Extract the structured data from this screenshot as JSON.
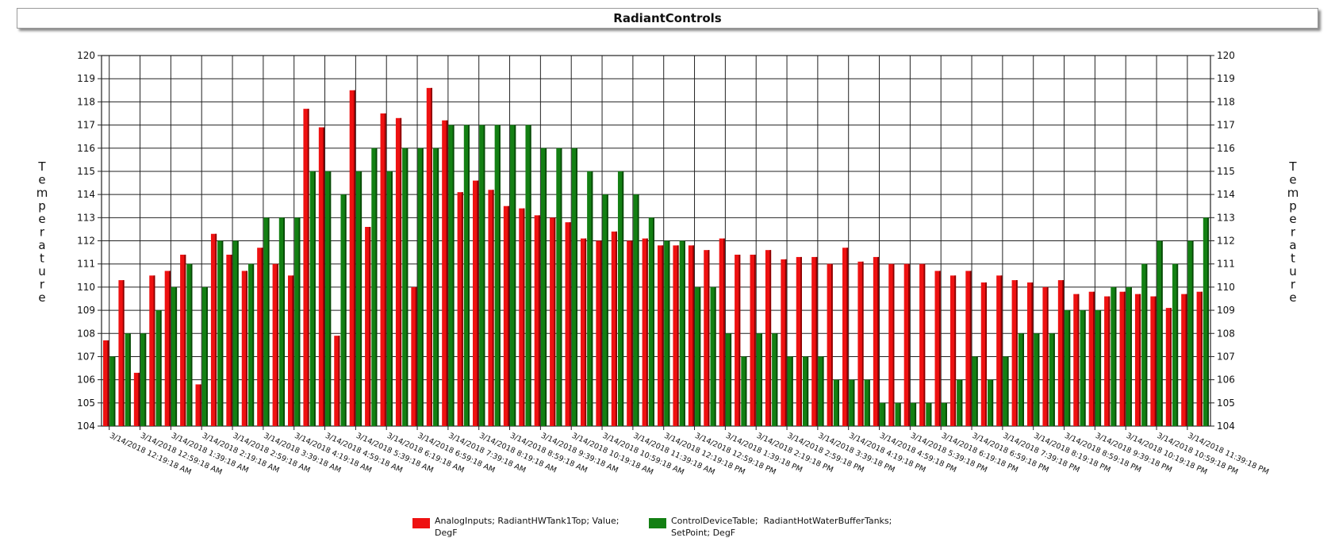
{
  "chart_data": {
    "type": "bar",
    "title": "RadiantControls",
    "ylabel": "Temperature",
    "ylabel_right": "Temperature",
    "ylim": [
      104,
      120
    ],
    "yticks": [
      104,
      105,
      106,
      107,
      108,
      109,
      110,
      111,
      112,
      113,
      114,
      115,
      116,
      117,
      118,
      119,
      120
    ],
    "grid": true,
    "legend_position": "bottom",
    "xtick_labels": [
      "3/14/2018 12:19:18 AM",
      "3/14/2018 12:59:18 AM",
      "3/14/2018 1:39:18 AM",
      "3/14/2018 2:19:18 AM",
      "3/14/2018 2:59:18 AM",
      "3/14/2018 3:39:18 AM",
      "3/14/2018 4:19:18 AM",
      "3/14/2018 4:59:18 AM",
      "3/14/2018 5:39:18 AM",
      "3/14/2018 6:19:18 AM",
      "3/14/2018 6:59:18 AM",
      "3/14/2018 7:39:18 AM",
      "3/14/2018 8:19:18 AM",
      "3/14/2018 8:59:18 AM",
      "3/14/2018 9:39:18 AM",
      "3/14/2018 10:19:18 AM",
      "3/14/2018 10:59:18 AM",
      "3/14/2018 11:39:18 AM",
      "3/14/2018 12:19:18 PM",
      "3/14/2018 12:59:18 PM",
      "3/14/2018 1:39:18 PM",
      "3/14/2018 2:19:18 PM",
      "3/14/2018 2:59:18 PM",
      "3/14/2018 3:39:18 PM",
      "3/14/2018 4:19:18 PM",
      "3/14/2018 4:59:18 PM",
      "3/14/2018 5:39:18 PM",
      "3/14/2018 6:19:18 PM",
      "3/14/2018 6:59:18 PM",
      "3/14/2018 7:39:18 PM",
      "3/14/2018 8:19:18 PM",
      "3/14/2018 8:59:18 PM",
      "3/14/2018 9:39:18 PM",
      "3/14/2018 10:19:18 PM",
      "3/14/2018 10:59:18 PM",
      "3/14/2018 11:39:18 PM"
    ],
    "series": [
      {
        "name": "AnalogInputs; RadiantHWTank1Top; Value;\nDegF",
        "color": "#ee1111",
        "values": [
          107.7,
          110.3,
          106.3,
          110.5,
          110.7,
          111.4,
          105.8,
          112.3,
          111.4,
          110.7,
          111.7,
          111.0,
          110.5,
          117.7,
          116.9,
          107.9,
          118.5,
          112.6,
          117.5,
          117.3,
          110.0,
          118.6,
          117.2,
          114.1,
          114.6,
          114.2,
          113.5,
          113.4,
          113.1,
          113.0,
          112.8,
          112.1,
          112.0,
          112.4,
          112.0,
          112.1,
          111.8,
          111.8,
          111.8,
          111.6,
          112.1,
          111.4,
          111.4,
          111.6,
          111.2,
          111.3,
          111.3,
          111.0,
          111.7,
          111.1,
          111.3,
          111.0,
          111.0,
          111.0,
          110.7,
          110.5,
          110.7,
          110.2,
          110.5,
          110.3,
          110.2,
          110.0,
          110.3,
          109.7,
          109.8,
          109.6,
          109.8,
          109.7,
          109.6,
          109.1,
          109.7,
          109.8
        ]
      },
      {
        "name": "ControlDeviceTable;  RadiantHotWaterBufferTanks;\nSetPoint; DegF",
        "color": "#138013",
        "values": [
          107,
          108,
          108,
          109,
          110,
          111,
          110,
          112,
          112,
          111,
          113,
          113,
          113,
          115,
          115,
          114,
          115,
          116,
          115,
          116,
          116,
          116,
          117,
          117,
          117,
          117,
          117,
          117,
          116,
          116,
          116,
          115,
          114,
          115,
          114,
          113,
          112,
          112,
          110,
          110,
          108,
          107,
          108,
          108,
          107,
          107,
          107,
          106,
          106,
          106,
          105,
          105,
          105,
          105,
          105,
          106,
          107,
          106,
          107,
          108,
          108,
          108,
          109,
          109,
          109,
          110,
          110,
          111,
          112,
          111,
          112,
          113
        ]
      }
    ]
  }
}
